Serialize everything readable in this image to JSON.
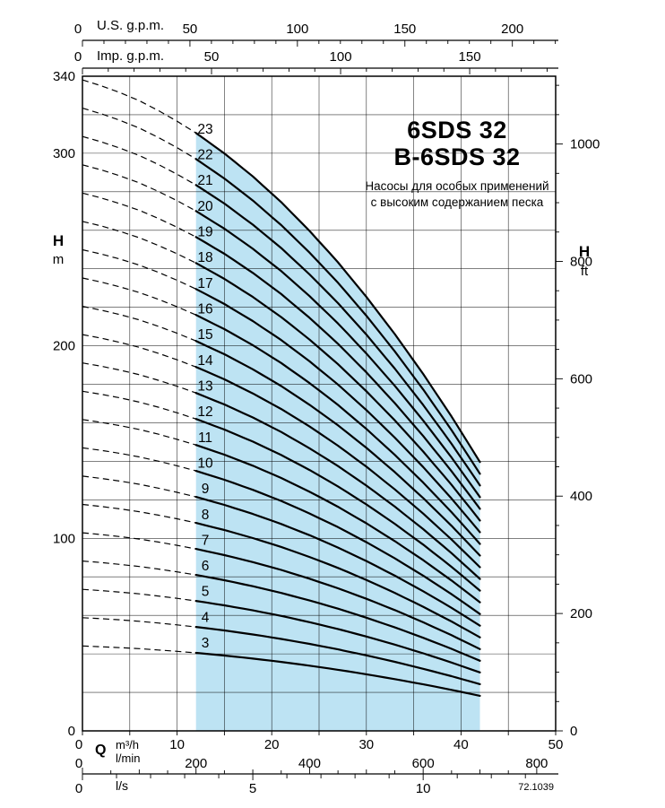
{
  "title": {
    "line1": "6SDS 32",
    "line2": "B-6SDS 32"
  },
  "subtitle": {
    "line1": "Насосы для особых применений",
    "line2": "с высоким содержанием песка"
  },
  "code": "72.1039",
  "colors": {
    "envelope": "#bde3f3",
    "curve": "#000000",
    "grid": "#000000",
    "axis": "#000000"
  },
  "axes": {
    "us_gpm": {
      "label": "U.S. g.p.m.",
      "ticks": [
        0,
        50,
        100,
        150,
        200
      ]
    },
    "imp_gpm": {
      "label": "Imp. g.p.m.",
      "ticks": [
        0,
        50,
        100,
        150
      ]
    },
    "head_m": {
      "label_h": "H",
      "label_unit": "m",
      "ticks": [
        0,
        100,
        200,
        300,
        340
      ]
    },
    "head_ft": {
      "label_h": "H",
      "label_unit": "ft",
      "ticks": [
        0,
        200,
        400,
        600,
        800,
        1000
      ]
    },
    "q_m3h": {
      "label_q": "Q",
      "label_unit": "m³/h",
      "ticks": [
        0,
        10,
        20,
        30,
        40,
        50
      ]
    },
    "q_lmin": {
      "label_unit": "l/min",
      "ticks": [
        0,
        200,
        400,
        600,
        800
      ]
    },
    "q_ls": {
      "label_unit": "l/s",
      "ticks": [
        0,
        5,
        10
      ]
    }
  },
  "chart_data": {
    "type": "line",
    "title": "6SDS 32 / B-6SDS 32",
    "xlabel": "Q (m³/h)",
    "ylabel": "H (m)",
    "xlim": [
      0,
      50
    ],
    "ylim": [
      0,
      340
    ],
    "x_m3h": [
      0,
      3,
      6,
      9,
      12,
      15,
      18,
      21,
      24,
      27,
      30,
      33,
      36,
      39,
      42
    ],
    "head_per_stage_m": [
      14.7,
      14.5,
      14.23,
      13.9,
      13.5,
      13.04,
      12.52,
      11.94,
      11.29,
      10.58,
      9.8,
      8.96,
      8.06,
      7.1,
      6.07
    ],
    "stages": [
      3,
      4,
      5,
      6,
      7,
      8,
      9,
      10,
      11,
      12,
      13,
      14,
      15,
      16,
      17,
      18,
      19,
      20,
      21,
      22,
      23
    ],
    "dashed_q_range_m3h": [
      0,
      12
    ],
    "solid_q_range_m3h": [
      12,
      42
    ],
    "shaded_envelope_q_m3h": [
      12,
      42
    ]
  }
}
